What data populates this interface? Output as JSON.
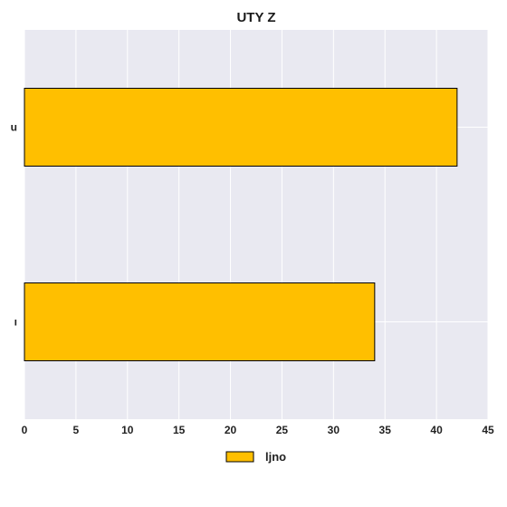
{
  "chart_data": {
    "type": "bar",
    "orientation": "horizontal",
    "title": "UTY Z",
    "categories": [
      "u",
      "ı"
    ],
    "series": [
      {
        "name": "ljno",
        "values": [
          42,
          34
        ]
      }
    ],
    "xlabel": "",
    "ylabel": "",
    "xlim": [
      0,
      45
    ],
    "xticks": [
      0,
      5,
      10,
      15,
      20,
      25,
      30,
      35,
      40,
      45
    ],
    "grid": true,
    "legend_position": "bottom",
    "colors": {
      "bar": "#ffbf00",
      "bar_edge": "#000000",
      "plot_bg": "#e9e9f1",
      "grid": "#ffffff"
    }
  }
}
